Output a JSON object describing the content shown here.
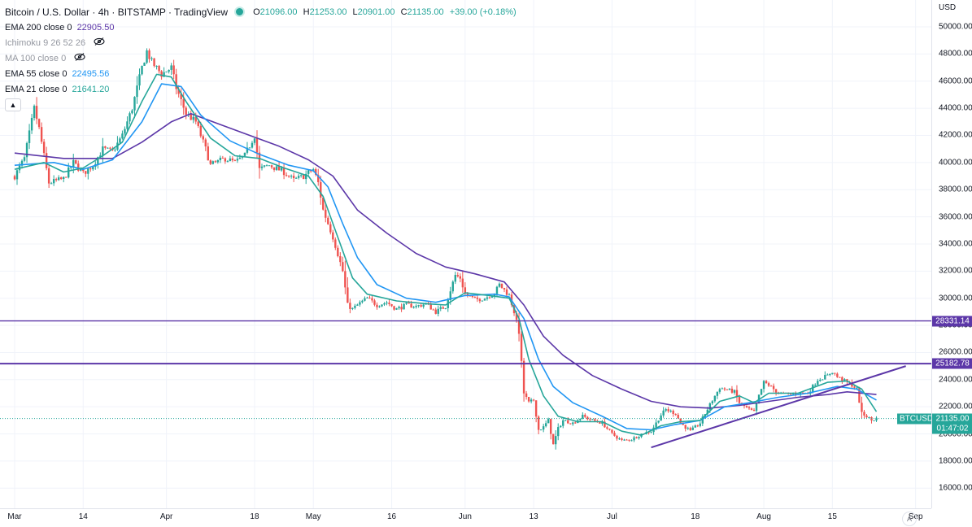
{
  "header": {
    "symbol_title": "Bitcoin / U.S. Dollar · 4h · BITSTAMP · TradingView",
    "ohlc": [
      {
        "key": "O",
        "value": "21096.00"
      },
      {
        "key": "H",
        "value": "21253.00"
      },
      {
        "key": "L",
        "value": "20901.00"
      },
      {
        "key": "C",
        "value": "21135.00"
      }
    ],
    "change": "+39.00 (+0.18%)"
  },
  "indicators": [
    {
      "name": "EMA 200 close 0",
      "value": "22905.50",
      "color": "#5c37a8",
      "hidden": false
    },
    {
      "name": "Ichimoku 9 26 52 26",
      "value": "",
      "color": "#9598a1",
      "hidden": true
    },
    {
      "name": "MA 100 close 0",
      "value": "",
      "color": "#9598a1",
      "hidden": true
    },
    {
      "name": "EMA 55 close 0",
      "value": "22495.56",
      "color": "#2196f3",
      "hidden": false
    },
    {
      "name": "EMA 21 close 0",
      "value": "21641.20",
      "color": "#26a69a",
      "hidden": false
    }
  ],
  "price_scale": {
    "currency": "USD",
    "ticks": [
      "50000.00",
      "48000.00",
      "46000.00",
      "44000.00",
      "42000.00",
      "40000.00",
      "38000.00",
      "36000.00",
      "34000.00",
      "32000.00",
      "30000.00",
      "28000.00",
      "26000.00",
      "24000.00",
      "22000.00",
      "20000.00",
      "18000.00",
      "16000.00"
    ],
    "auto_label": "A"
  },
  "time_scale": {
    "ticks": [
      "Mar",
      "14",
      "Apr",
      "18",
      "May",
      "16",
      "Jun",
      "13",
      "Jul",
      "18",
      "Aug",
      "15",
      "Sep"
    ]
  },
  "horizontal_lines": [
    {
      "price": 28331.14,
      "label": "28331.14",
      "color": "#5c37a8"
    },
    {
      "price": 25182.78,
      "label": "25182.78",
      "color": "#5c37a8"
    }
  ],
  "current_price": {
    "symbol": "BTCUSD",
    "price": "21135.00",
    "countdown": "01:47:02",
    "color": "#26a69a"
  },
  "chart_data": {
    "type": "candlestick",
    "timeframe": "4h",
    "ylim": [
      15000,
      51500
    ],
    "x_range_days": [
      0,
      186
    ],
    "close_series": [
      [
        0,
        39000
      ],
      [
        2,
        40300
      ],
      [
        4,
        44000
      ],
      [
        5,
        42500
      ],
      [
        7,
        38500
      ],
      [
        10,
        38800
      ],
      [
        12,
        40000
      ],
      [
        14,
        39200
      ],
      [
        16,
        39800
      ],
      [
        18,
        41000
      ],
      [
        20,
        40800
      ],
      [
        22,
        42000
      ],
      [
        24,
        44000
      ],
      [
        26,
        47000
      ],
      [
        27,
        48200
      ],
      [
        28,
        47400
      ],
      [
        30,
        46500
      ],
      [
        32,
        47000
      ],
      [
        33,
        45500
      ],
      [
        35,
        43600
      ],
      [
        37,
        43000
      ],
      [
        39,
        41000
      ],
      [
        40,
        39800
      ],
      [
        43,
        40300
      ],
      [
        45,
        40000
      ],
      [
        47,
        40500
      ],
      [
        49,
        42000
      ],
      [
        50,
        39500
      ],
      [
        52,
        39800
      ],
      [
        55,
        39300
      ],
      [
        57,
        38700
      ],
      [
        59,
        39000
      ],
      [
        61,
        39500
      ],
      [
        62,
        38500
      ],
      [
        63,
        36500
      ],
      [
        65,
        34500
      ],
      [
        67,
        32000
      ],
      [
        68,
        29500
      ],
      [
        69,
        29200
      ],
      [
        70,
        29500
      ],
      [
        72,
        30000
      ],
      [
        74,
        29500
      ],
      [
        76,
        29700
      ],
      [
        78,
        29200
      ],
      [
        80,
        29500
      ],
      [
        82,
        29400
      ],
      [
        84,
        29600
      ],
      [
        86,
        29000
      ],
      [
        88,
        29400
      ],
      [
        89,
        30600
      ],
      [
        90,
        31700
      ],
      [
        91,
        31500
      ],
      [
        92,
        30300
      ],
      [
        94,
        29900
      ],
      [
        96,
        30000
      ],
      [
        98,
        30400
      ],
      [
        99,
        31000
      ],
      [
        101,
        30200
      ],
      [
        102,
        29000
      ],
      [
        103,
        27500
      ],
      [
        104,
        23000
      ],
      [
        105,
        22300
      ],
      [
        106,
        22500
      ],
      [
        107,
        20300
      ],
      [
        108,
        20500
      ],
      [
        109,
        21000
      ],
      [
        110,
        19200
      ],
      [
        111,
        20400
      ],
      [
        112,
        21000
      ],
      [
        114,
        20800
      ],
      [
        116,
        21300
      ],
      [
        118,
        21000
      ],
      [
        120,
        20800
      ],
      [
        122,
        20000
      ],
      [
        124,
        19500
      ],
      [
        126,
        19600
      ],
      [
        128,
        20000
      ],
      [
        130,
        20200
      ],
      [
        132,
        21400
      ],
      [
        133,
        21800
      ],
      [
        135,
        21500
      ],
      [
        136,
        20800
      ],
      [
        138,
        20200
      ],
      [
        140,
        20800
      ],
      [
        141,
        21500
      ],
      [
        143,
        22800
      ],
      [
        144,
        23400
      ],
      [
        145,
        23300
      ],
      [
        147,
        23100
      ],
      [
        148,
        22300
      ],
      [
        150,
        21800
      ],
      [
        151,
        21600
      ],
      [
        152,
        22800
      ],
      [
        153,
        23800
      ],
      [
        154,
        23600
      ],
      [
        156,
        23000
      ],
      [
        158,
        22900
      ],
      [
        160,
        23000
      ],
      [
        162,
        23000
      ],
      [
        164,
        24000
      ],
      [
        166,
        24300
      ],
      [
        167,
        24600
      ],
      [
        168,
        24200
      ],
      [
        169,
        24000
      ],
      [
        171,
        23600
      ],
      [
        172,
        23300
      ],
      [
        173,
        21500
      ],
      [
        174,
        21300
      ],
      [
        175,
        21000
      ],
      [
        176,
        21135
      ]
    ],
    "ema_21": [
      [
        0,
        39500
      ],
      [
        6,
        40000
      ],
      [
        10,
        39300
      ],
      [
        14,
        39600
      ],
      [
        18,
        40500
      ],
      [
        22,
        41500
      ],
      [
        26,
        44500
      ],
      [
        29,
        46500
      ],
      [
        32,
        46300
      ],
      [
        35,
        44500
      ],
      [
        40,
        41800
      ],
      [
        45,
        40500
      ],
      [
        50,
        40300
      ],
      [
        55,
        39600
      ],
      [
        60,
        39000
      ],
      [
        63,
        37500
      ],
      [
        66,
        34500
      ],
      [
        69,
        31500
      ],
      [
        72,
        30300
      ],
      [
        78,
        29800
      ],
      [
        84,
        29600
      ],
      [
        88,
        29500
      ],
      [
        92,
        30400
      ],
      [
        97,
        30200
      ],
      [
        101,
        30000
      ],
      [
        103,
        28500
      ],
      [
        105,
        25500
      ],
      [
        108,
        22800
      ],
      [
        111,
        21300
      ],
      [
        115,
        20900
      ],
      [
        120,
        20900
      ],
      [
        124,
        20200
      ],
      [
        128,
        19900
      ],
      [
        132,
        20600
      ],
      [
        136,
        20900
      ],
      [
        140,
        21000
      ],
      [
        144,
        22400
      ],
      [
        148,
        22800
      ],
      [
        151,
        22300
      ],
      [
        154,
        23000
      ],
      [
        160,
        23000
      ],
      [
        166,
        23800
      ],
      [
        170,
        23900
      ],
      [
        173,
        23300
      ],
      [
        176,
        21641
      ]
    ],
    "ema_55": [
      [
        0,
        39800
      ],
      [
        8,
        40000
      ],
      [
        14,
        39500
      ],
      [
        20,
        40200
      ],
      [
        26,
        43000
      ],
      [
        30,
        45800
      ],
      [
        34,
        45600
      ],
      [
        38,
        43500
      ],
      [
        44,
        41600
      ],
      [
        50,
        40600
      ],
      [
        56,
        39800
      ],
      [
        61,
        39400
      ],
      [
        64,
        38200
      ],
      [
        67,
        35500
      ],
      [
        70,
        33000
      ],
      [
        74,
        31000
      ],
      [
        80,
        30000
      ],
      [
        86,
        29700
      ],
      [
        92,
        30200
      ],
      [
        98,
        30300
      ],
      [
        101,
        30100
      ],
      [
        104,
        28500
      ],
      [
        107,
        25500
      ],
      [
        110,
        23500
      ],
      [
        114,
        22300
      ],
      [
        120,
        21300
      ],
      [
        125,
        20400
      ],
      [
        130,
        20300
      ],
      [
        135,
        20700
      ],
      [
        140,
        21000
      ],
      [
        145,
        22000
      ],
      [
        150,
        22300
      ],
      [
        156,
        22700
      ],
      [
        162,
        23000
      ],
      [
        168,
        23500
      ],
      [
        172,
        23300
      ],
      [
        176,
        22495
      ]
    ],
    "ema_200": [
      [
        0,
        40700
      ],
      [
        10,
        40300
      ],
      [
        20,
        40300
      ],
      [
        26,
        41500
      ],
      [
        32,
        43000
      ],
      [
        36,
        43600
      ],
      [
        42,
        42800
      ],
      [
        48,
        42000
      ],
      [
        54,
        41200
      ],
      [
        60,
        40200
      ],
      [
        65,
        39000
      ],
      [
        70,
        36500
      ],
      [
        76,
        34800
      ],
      [
        82,
        33300
      ],
      [
        88,
        32300
      ],
      [
        94,
        31800
      ],
      [
        100,
        31200
      ],
      [
        104,
        29500
      ],
      [
        108,
        27200
      ],
      [
        112,
        25800
      ],
      [
        118,
        24300
      ],
      [
        124,
        23300
      ],
      [
        130,
        22400
      ],
      [
        136,
        22000
      ],
      [
        142,
        21900
      ],
      [
        148,
        22100
      ],
      [
        154,
        22400
      ],
      [
        160,
        22700
      ],
      [
        166,
        22900
      ],
      [
        170,
        23100
      ],
      [
        176,
        22905
      ]
    ],
    "trendline": [
      [
        130,
        19000
      ],
      [
        182,
        25000
      ]
    ]
  },
  "colors": {
    "bull": "#26a69a",
    "bear": "#ef5350",
    "ema_21": "#26a69a",
    "ema_55": "#2196f3",
    "ema_200": "#5c37a8",
    "trendline": "#5c37a8",
    "grid": "#f0f3fa"
  }
}
